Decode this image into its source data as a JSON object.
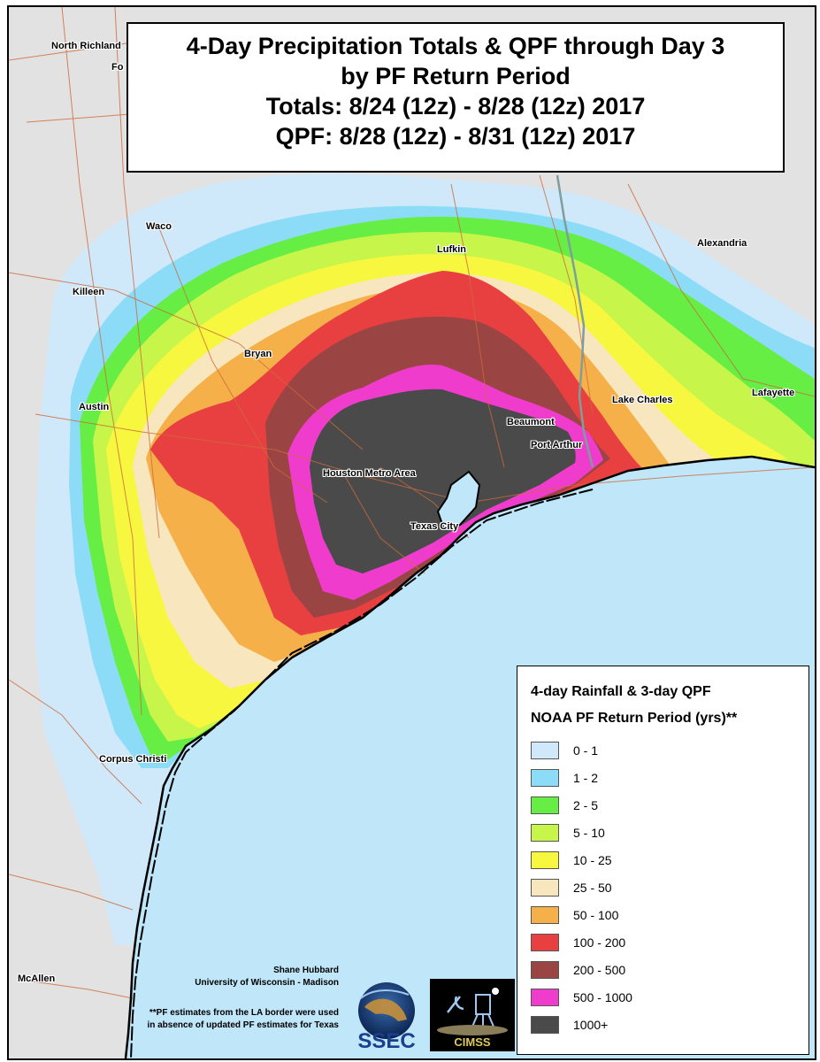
{
  "title": {
    "line1": "4-Day Precipitation Totals & QPF through Day 3",
    "line2": "by PF Return Period",
    "line3": "Totals: 8/24 (12z) - 8/28 (12z) 2017",
    "line4": "QPF: 8/28 (12z) - 8/31 (12z) 2017"
  },
  "cities": [
    {
      "label": "North Richland"
    },
    {
      "label": "Fo"
    },
    {
      "label": "Waco"
    },
    {
      "label": "Killeen"
    },
    {
      "label": "Austin"
    },
    {
      "label": "Bryan"
    },
    {
      "label": "Lufkin"
    },
    {
      "label": "Alexandria"
    },
    {
      "label": "Lake Charles"
    },
    {
      "label": "Lafayette"
    },
    {
      "label": "Beaumont"
    },
    {
      "label": "Port Arthur"
    },
    {
      "label": "Houston Metro Area"
    },
    {
      "label": "Texas City"
    },
    {
      "label": "Corpus Christi"
    },
    {
      "label": "McAllen"
    }
  ],
  "legend": {
    "title1": "4-day Rainfall & 3-day QPF",
    "title2": "NOAA PF Return Period (yrs)**",
    "items": [
      {
        "label": "0 - 1",
        "color": "#cfe9fb"
      },
      {
        "label": "1 - 2",
        "color": "#8ddcf7"
      },
      {
        "label": "2 - 5",
        "color": "#66ee44"
      },
      {
        "label": "5 - 10",
        "color": "#c8f54a"
      },
      {
        "label": "10 - 25",
        "color": "#f7f740"
      },
      {
        "label": "25 - 50",
        "color": "#f8e6bf"
      },
      {
        "label": "50 - 100",
        "color": "#f6b04a"
      },
      {
        "label": "100 - 200",
        "color": "#e84040"
      },
      {
        "label": "200 - 500",
        "color": "#9b4444"
      },
      {
        "label": "500 - 1000",
        "color": "#f03ccc"
      },
      {
        "label": "1000+",
        "color": "#4a4a4a"
      }
    ]
  },
  "credits": {
    "author": "Shane Hubbard",
    "institution": "University of Wisconsin - Madison",
    "note1": "**PF estimates from the LA border were used",
    "note2": "in absence of updated PF estimates for Texas"
  },
  "logos": {
    "ssec": "SSEC",
    "cimss": "CIMSS"
  },
  "colors": {
    "gulf": "#bfe6f9",
    "land": "#e2e2e2",
    "roads": "#cc6a3a",
    "state_border": "#7e9e9e"
  }
}
